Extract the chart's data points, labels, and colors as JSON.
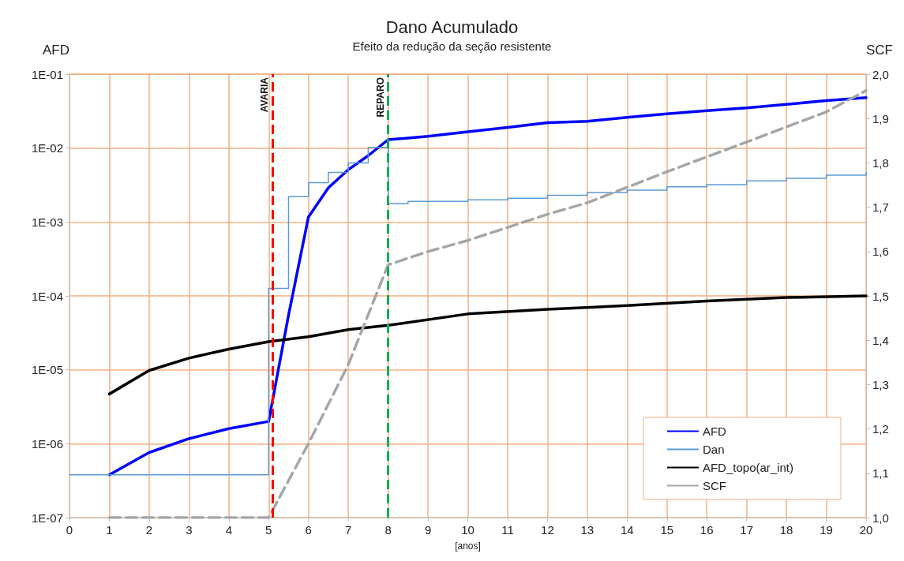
{
  "chart_data": {
    "type": "line",
    "title": "Dano Acumulado",
    "subtitle": "Efeito da redução da seção resistente",
    "xlabel": "[anos]",
    "ylabel": "AFD",
    "y2label": "SCF",
    "xlim": [
      0,
      20
    ],
    "xticks": [
      0,
      1,
      2,
      3,
      4,
      5,
      6,
      7,
      8,
      9,
      10,
      11,
      12,
      13,
      14,
      15,
      16,
      17,
      18,
      19,
      20
    ],
    "log": "y",
    "ylim": [
      1e-07,
      0.1
    ],
    "yticks": [
      {
        "value": 1e-07,
        "label": "1E-07"
      },
      {
        "value": 1e-06,
        "label": "1E-06"
      },
      {
        "value": 1e-05,
        "label": "1E-05"
      },
      {
        "value": 0.0001,
        "label": "1E-04"
      },
      {
        "value": 0.001,
        "label": "1E-03"
      },
      {
        "value": 0.01,
        "label": "1E-02"
      },
      {
        "value": 0.1,
        "label": "1E-01"
      }
    ],
    "y2lim": [
      1,
      2
    ],
    "y2ticks": [
      {
        "value": 1,
        "label": "1,0"
      },
      {
        "value": 1.1,
        "label": "1,1"
      },
      {
        "value": 1.2,
        "label": "1,2"
      },
      {
        "value": 1.3,
        "label": "1,3"
      },
      {
        "value": 1.4,
        "label": "1,4"
      },
      {
        "value": 1.5,
        "label": "1,5"
      },
      {
        "value": 1.6,
        "label": "1,6"
      },
      {
        "value": 1.7,
        "label": "1,7"
      },
      {
        "value": 1.8,
        "label": "1,8"
      },
      {
        "value": 1.9,
        "label": "1,9"
      },
      {
        "value": 2,
        "label": "2,0"
      }
    ],
    "grid": true,
    "legend": "bottom right",
    "marker": "none",
    "series": [
      {
        "name": "AFD",
        "color": "#0000ff",
        "x": [
          1,
          2,
          3,
          4,
          5,
          5.5,
          6,
          6.5,
          7,
          7.5,
          8,
          9,
          10,
          11,
          12,
          13,
          14,
          15,
          16,
          17,
          18,
          19,
          20
        ],
        "values": [
          3.8e-07,
          7.6e-07,
          1.17e-06,
          1.6e-06,
          2e-06,
          5.5e-05,
          0.00117,
          0.0029,
          0.0051,
          0.0079,
          0.013,
          0.0144,
          0.0166,
          0.019,
          0.022,
          0.023,
          0.026,
          0.029,
          0.032,
          0.035,
          0.039,
          0.044,
          0.048
        ]
      },
      {
        "name": "Dan",
        "type": "step",
        "color": "#5b9bd5",
        "x": [
          0,
          5,
          5.5,
          6,
          6.5,
          7,
          7.5,
          8,
          8.5,
          10,
          11,
          12,
          13,
          14,
          15,
          16,
          17,
          18,
          19,
          20
        ],
        "values": [
          3.8e-07,
          0.000126,
          0.0022,
          0.0034,
          0.0047,
          0.0063,
          0.0102,
          0.00178,
          0.0019,
          0.002,
          0.0021,
          0.0023,
          0.0025,
          0.0027,
          0.003,
          0.0032,
          0.0036,
          0.0039,
          0.0043,
          0.0047
        ]
      },
      {
        "name": "AFD_topo(ar_int)",
        "color": "#000000",
        "x": [
          1,
          2,
          3,
          4,
          5,
          6,
          7,
          8,
          10,
          12,
          14,
          16,
          18,
          20
        ],
        "values": [
          4.7e-06,
          9.8e-06,
          1.44e-05,
          1.9e-05,
          2.4e-05,
          2.8e-05,
          3.5e-05,
          4e-05,
          5.7e-05,
          6.6e-05,
          7.4e-05,
          8.5e-05,
          9.5e-05,
          0.0001
        ]
      },
      {
        "name": "SCF",
        "axis": "y2",
        "line_style": "dashed",
        "color": "#a6a6a6",
        "x": [
          1,
          5,
          6,
          7,
          8,
          9,
          10,
          12,
          13,
          15,
          17,
          19,
          20
        ],
        "values": [
          1,
          1,
          1.167,
          1.345,
          1.57,
          1.6,
          1.625,
          1.684,
          1.71,
          1.78,
          1.847,
          1.915,
          1.963
        ]
      }
    ],
    "ref_lines": [
      {
        "axis": "x",
        "value": 5.1,
        "label": "AVARIA",
        "color": "#ff0000",
        "line_style": "dashed"
      },
      {
        "axis": "x",
        "value": 8,
        "label": "REPARO",
        "color": "#00b050",
        "line_style": "dashed"
      }
    ]
  }
}
